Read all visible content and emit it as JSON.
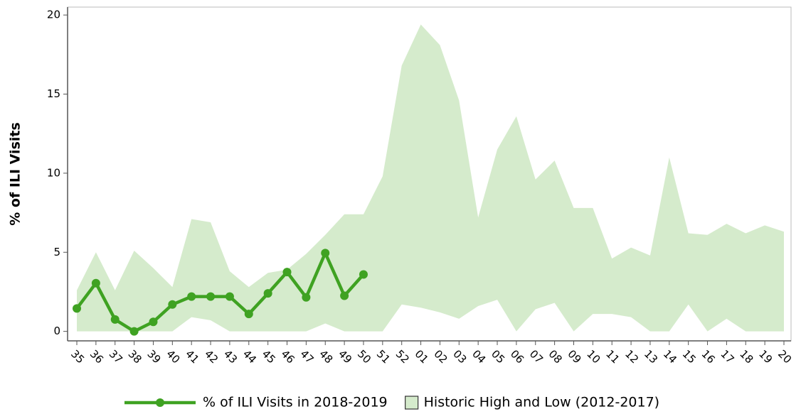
{
  "chart_data": {
    "type": "line",
    "y_label": "% of ILI Visits",
    "categories": [
      "35",
      "36",
      "37",
      "38",
      "39",
      "40",
      "41",
      "42",
      "43",
      "44",
      "45",
      "46",
      "47",
      "48",
      "49",
      "50",
      "51",
      "52",
      "01",
      "02",
      "03",
      "04",
      "05",
      "06",
      "07",
      "08",
      "09",
      "10",
      "11",
      "12",
      "13",
      "14",
      "15",
      "16",
      "17",
      "18",
      "19",
      "20"
    ],
    "series": [
      {
        "name": "% of ILI Visits in 2018-2019",
        "color": "#3fa222",
        "values": [
          1.45,
          3.05,
          0.75,
          0.0,
          0.6,
          1.7,
          2.2,
          2.2,
          2.2,
          1.1,
          2.4,
          3.75,
          2.15,
          4.95,
          2.25,
          3.6,
          null,
          null,
          null,
          null,
          null,
          null,
          null,
          null,
          null,
          null,
          null,
          null,
          null,
          null,
          null,
          null,
          null,
          null,
          null,
          null,
          null,
          null
        ]
      },
      {
        "name": "Historic High and Low (2012-2017)",
        "color": "#d5ebcc",
        "high": [
          2.6,
          5.0,
          2.6,
          5.1,
          4.0,
          2.8,
          7.1,
          6.9,
          3.8,
          2.8,
          3.7,
          3.9,
          4.9,
          6.1,
          7.4,
          7.4,
          9.8,
          16.8,
          19.4,
          18.1,
          14.6,
          7.2,
          11.5,
          13.6,
          9.6,
          10.8,
          7.8,
          7.8,
          4.6,
          5.3,
          4.8,
          11.0,
          6.2,
          6.1,
          6.8,
          6.2,
          6.7,
          6.3
        ],
        "low": [
          0,
          0,
          0,
          0,
          0,
          0,
          0.9,
          0.7,
          0,
          0,
          0,
          0,
          0,
          0.5,
          0,
          0,
          0,
          1.7,
          1.5,
          1.2,
          0.8,
          1.6,
          2.0,
          0,
          1.4,
          1.8,
          0,
          1.1,
          1.1,
          0.9,
          0,
          0,
          1.7,
          0,
          0.8,
          0,
          0,
          0
        ]
      }
    ],
    "ylim": [
      -0.6,
      20.5
    ],
    "yticks": [
      0,
      5,
      10,
      15,
      20
    ],
    "grid": false,
    "legend": "bottom"
  }
}
